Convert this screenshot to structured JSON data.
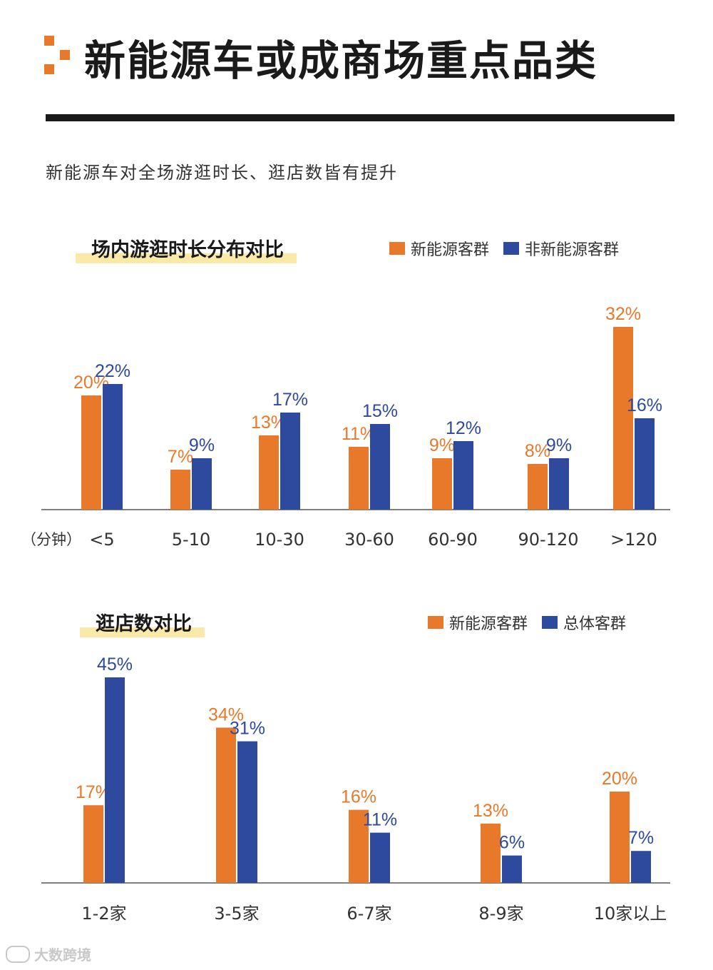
{
  "header": {
    "title": "新能源车或成商场重点品类",
    "subtitle": "新能源车对全场游逛时长、逛店数皆有提升"
  },
  "colors": {
    "orange": "#E8792A",
    "blue": "#2E4A9E",
    "highlight": "#FBE9A7"
  },
  "watermark": {
    "text": "大数跨境",
    "icon": "cloud-logo-icon"
  },
  "chart_data": [
    {
      "type": "bar",
      "title": "场内游逛时长分布对比",
      "unit_label": "（分钟）",
      "categories": [
        "<5",
        "5-10",
        "10-30",
        "30-60",
        "60-90",
        "90-120",
        ">120"
      ],
      "series": [
        {
          "name": "新能源客群",
          "values": [
            20,
            7,
            13,
            11,
            9,
            8,
            32
          ]
        },
        {
          "name": "非新能源客群",
          "values": [
            22,
            9,
            17,
            15,
            12,
            9,
            16
          ]
        }
      ],
      "ylim": [
        0,
        35
      ],
      "value_suffix": "%",
      "legend_position": "top-right",
      "grid": false
    },
    {
      "type": "bar",
      "title": "逛店数对比",
      "categories": [
        "1-2家",
        "3-5家",
        "6-7家",
        "8-9家",
        "10家以上"
      ],
      "series": [
        {
          "name": "新能源客群",
          "values": [
            17,
            34,
            16,
            13,
            20
          ]
        },
        {
          "name": "总体客群",
          "values": [
            45,
            31,
            11,
            6,
            7
          ]
        }
      ],
      "ylim": [
        0,
        50
      ],
      "value_suffix": "%",
      "legend_position": "top-right",
      "grid": false
    }
  ]
}
